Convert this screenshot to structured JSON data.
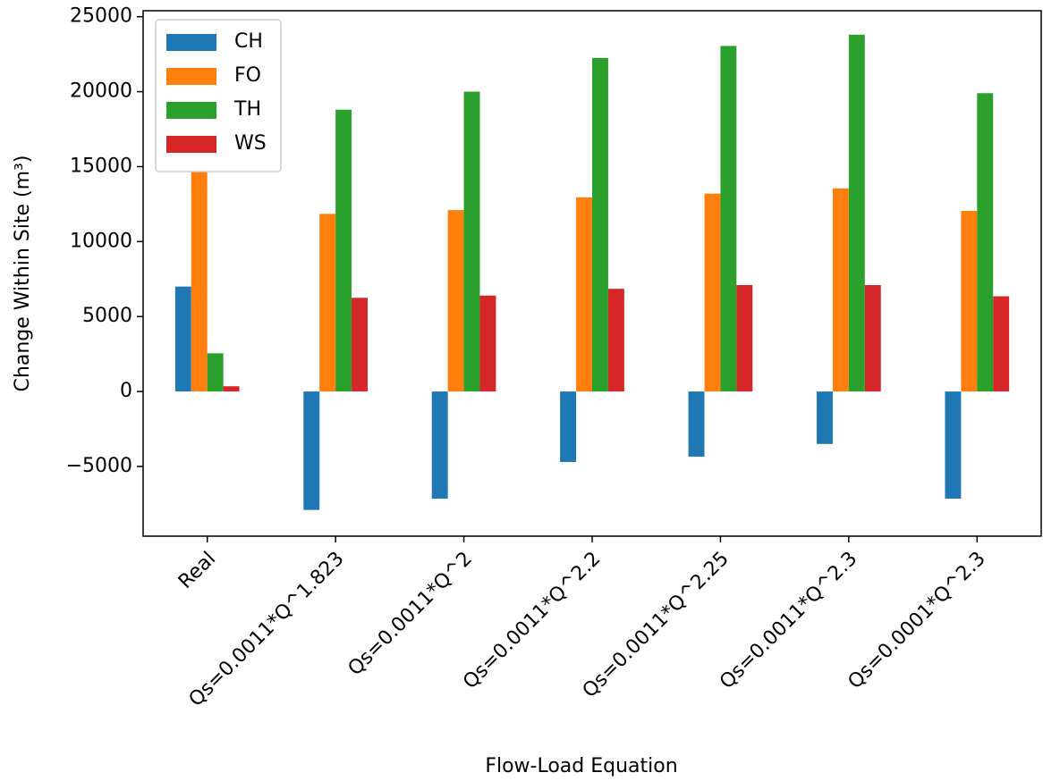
{
  "chart_data": {
    "type": "bar",
    "x_label": "Flow-Load Equation",
    "y_label": "Change Within Site (m³)",
    "categories": [
      "Real",
      "Qs=0.0011*Q^1.823",
      "Qs=0.0011*Q^2",
      "Qs=0.0011*Q^2.2",
      "Qs=0.0011*Q^2.25",
      "Qs=0.0011*Q^2.3",
      "Qs=0.0001*Q^2.3"
    ],
    "series": [
      {
        "name": "CH",
        "color": "#1f77b4",
        "values": [
          7000,
          -7900,
          -7150,
          -4700,
          -4350,
          -3500,
          -7150
        ]
      },
      {
        "name": "FO",
        "color": "#ff7f0e",
        "values": [
          14700,
          11850,
          12100,
          12950,
          13200,
          13550,
          12050
        ]
      },
      {
        "name": "TH",
        "color": "#2ca02c",
        "values": [
          2550,
          18800,
          20000,
          22250,
          23050,
          23800,
          19900
        ]
      },
      {
        "name": "WS",
        "color": "#d62728",
        "values": [
          350,
          6250,
          6400,
          6850,
          7100,
          7100,
          6350
        ]
      }
    ],
    "ylim": [
      -9650,
      25400
    ],
    "yticks": [
      {
        "value": -5000,
        "label": "−5000"
      },
      0,
      5000,
      10000,
      15000,
      20000,
      25000
    ],
    "legend": "upper-left"
  }
}
